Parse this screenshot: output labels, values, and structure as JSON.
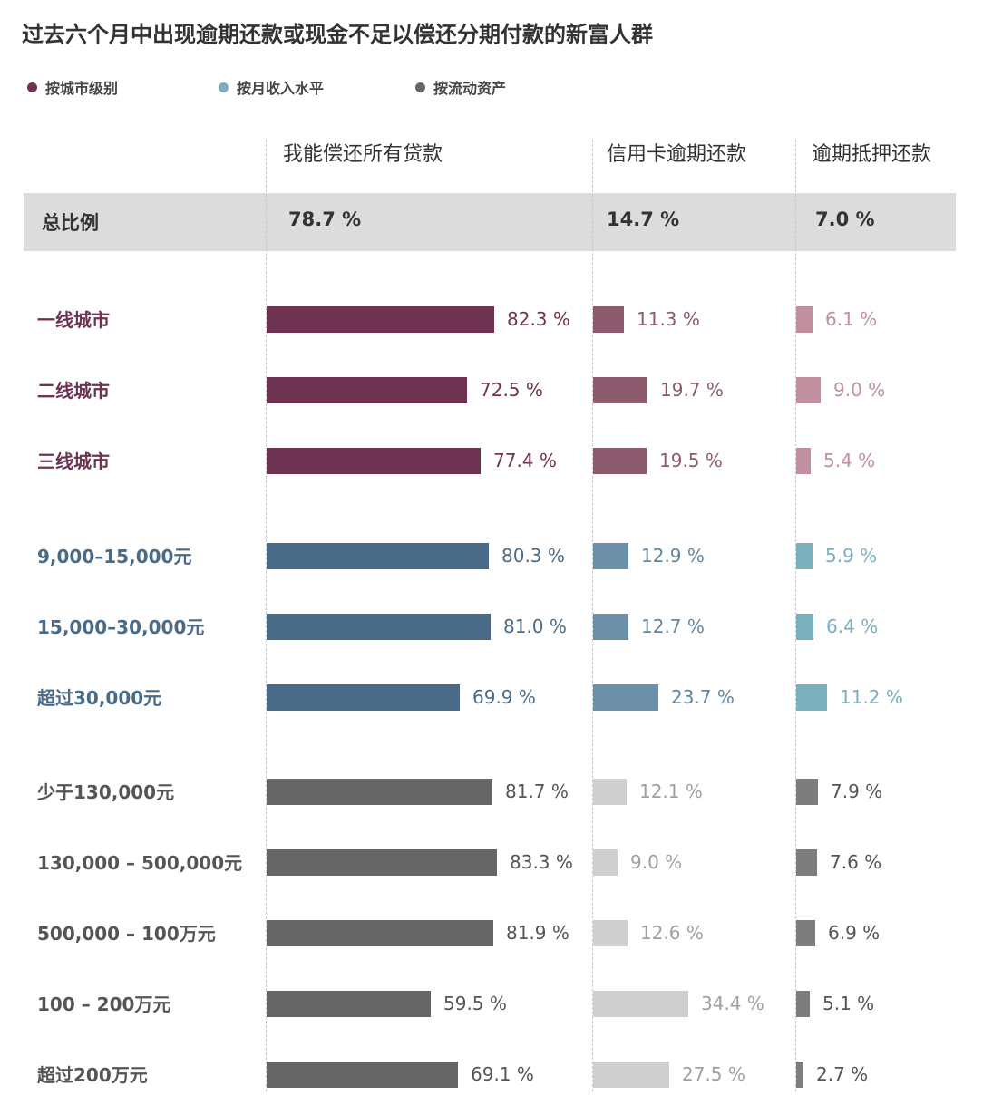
{
  "title": "过去六个月中出现逾期还款或现金不足以偿还分期付款的新富人群",
  "legend": [
    {
      "label": "按城市级别",
      "color": "#6e3350"
    },
    {
      "label": "按月收入水平",
      "color": "#7aafbe"
    },
    {
      "label": "按流动资产",
      "color": "#666666"
    }
  ],
  "chart_data": {
    "type": "bar",
    "columns": [
      "我能偿还所有贷款",
      "信用卡逾期还款",
      "逾期抵押还款"
    ],
    "total": {
      "label": "总比例",
      "values": [
        78.7,
        14.7,
        7.0
      ],
      "display": [
        "78.7 %",
        "14.7 %",
        "7.0 %"
      ]
    },
    "groups": [
      {
        "legend_index": 0,
        "label_color": "#6e3350",
        "bar_colors": [
          "#6e3350",
          "#8c5c6e",
          "#c0909f"
        ],
        "value_colors": [
          "#6e3350",
          "#8c5c6e",
          "#c0909f"
        ],
        "rows": [
          {
            "label": "一线城市",
            "values": [
              82.3,
              11.3,
              6.1
            ],
            "display": [
              "82.3 %",
              "11.3 %",
              "6.1 %"
            ]
          },
          {
            "label": "二线城市",
            "values": [
              72.5,
              19.7,
              9.0
            ],
            "display": [
              "72.5 %",
              "19.7 %",
              "9.0 %"
            ]
          },
          {
            "label": "三线城市",
            "values": [
              77.4,
              19.5,
              5.4
            ],
            "display": [
              "77.4 %",
              "19.5 %",
              "5.4 %"
            ]
          }
        ]
      },
      {
        "legend_index": 1,
        "label_color": "#4a6b87",
        "bar_colors": [
          "#4a6b87",
          "#6a8fa6",
          "#7aafbe"
        ],
        "value_colors": [
          "#4a6b87",
          "#5f87a0",
          "#7aafbe"
        ],
        "rows": [
          {
            "label": "9,000–15,000元",
            "values": [
              80.3,
              12.9,
              5.9
            ],
            "display": [
              "80.3 %",
              "12.9 %",
              "5.9 %"
            ]
          },
          {
            "label": "15,000–30,000元",
            "values": [
              81.0,
              12.7,
              6.4
            ],
            "display": [
              "81.0 %",
              "12.7 %",
              "6.4 %"
            ]
          },
          {
            "label": "超过30,000元",
            "values": [
              69.9,
              23.7,
              11.2
            ],
            "display": [
              "69.9 %",
              "23.7 %",
              "11.2 %"
            ]
          }
        ]
      },
      {
        "legend_index": 2,
        "label_color": "#555555",
        "bar_colors": [
          "#666666",
          "#cfcfcf",
          "#7d7d7d"
        ],
        "value_colors": [
          "#555555",
          "#a0a0a0",
          "#555555"
        ],
        "rows": [
          {
            "label": "少于130,000元",
            "values": [
              81.7,
              12.1,
              7.9
            ],
            "display": [
              "81.7 %",
              "12.1 %",
              "7.9 %"
            ]
          },
          {
            "label": "130,000 – 500,000元",
            "values": [
              83.3,
              9.0,
              7.6
            ],
            "display": [
              "83.3 %",
              "9.0 %",
              "7.6 %"
            ]
          },
          {
            "label": "500,000 – 100万元",
            "values": [
              81.9,
              12.6,
              6.9
            ],
            "display": [
              "81.9 %",
              "12.6 %",
              "6.9 %"
            ]
          },
          {
            "label": "100 – 200万元",
            "values": [
              59.5,
              34.4,
              5.1
            ],
            "display": [
              "59.5 %",
              "34.4 %",
              "5.1 %"
            ]
          },
          {
            "label": "超过200万元",
            "values": [
              69.1,
              27.5,
              2.7
            ],
            "display": [
              "69.1 %",
              "27.5 %",
              "2.7 %"
            ]
          }
        ]
      }
    ]
  }
}
